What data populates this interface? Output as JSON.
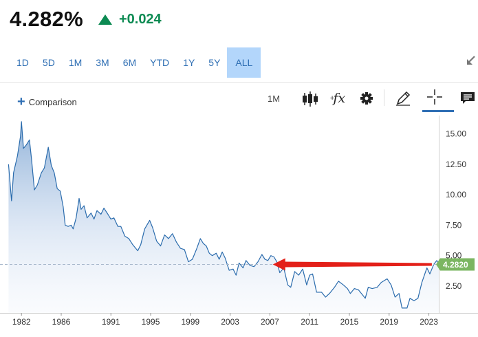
{
  "quote": {
    "price": "4.282%",
    "direction": "up",
    "change": "+0.024"
  },
  "ranges": [
    {
      "label": "1D",
      "active": false
    },
    {
      "label": "5D",
      "active": false
    },
    {
      "label": "1M",
      "active": false
    },
    {
      "label": "3M",
      "active": false
    },
    {
      "label": "6M",
      "active": false
    },
    {
      "label": "YTD",
      "active": false
    },
    {
      "label": "1Y",
      "active": false
    },
    {
      "label": "5Y",
      "active": false
    },
    {
      "label": "ALL",
      "active": true
    }
  ],
  "toolbar": {
    "comparison_label": "Comparison",
    "interval_label": "1M",
    "fx_label": "fx",
    "fx_sup": "+",
    "icons": [
      "candlestick-icon",
      "function-icon",
      "gear-icon",
      "pencil-icon",
      "crosshair-icon",
      "comment-icon",
      "collapse-arrow-icon"
    ]
  },
  "colors": {
    "accent": "#2f6fb4",
    "active_range_bg": "#b3d6fb",
    "up": "#0c8a52",
    "line": "#2b6cad",
    "price_tag": "#7bb661",
    "annotation_arrow": "#e32019"
  },
  "chart_data": {
    "type": "area",
    "x_tick_labels": [
      "1982",
      "1986",
      "1991",
      "1995",
      "1999",
      "2003",
      "2007",
      "2011",
      "2015",
      "2019",
      "2023"
    ],
    "y_tick_labels": [
      "2.50",
      "5.00",
      "7.50",
      "10.00",
      "12.50",
      "15.00"
    ],
    "y_ticks": [
      2.5,
      5,
      7.5,
      10,
      12.5,
      15
    ],
    "xlim": [
      1980.6,
      2024.0
    ],
    "ylim": [
      0.3,
      16.5
    ],
    "last_price_label": "4.2820",
    "last_price": 4.282,
    "grid": false,
    "annotation": "red arrow pointing left from the last-price level toward the 2007 peak",
    "annotation_arrow": {
      "from": [
        2023.3,
        4.282
      ],
      "to": [
        2007.3,
        4.282
      ]
    },
    "series": [
      {
        "values": [
          [
            1980.7,
            12.5
          ],
          [
            1981.0,
            9.5
          ],
          [
            1981.2,
            11.8
          ],
          [
            1981.6,
            13.2
          ],
          [
            1981.9,
            14.8
          ],
          [
            1982.0,
            16.0
          ],
          [
            1982.2,
            13.8
          ],
          [
            1982.5,
            14.1
          ],
          [
            1982.8,
            14.5
          ],
          [
            1983.0,
            13.0
          ],
          [
            1983.3,
            10.4
          ],
          [
            1983.6,
            10.8
          ],
          [
            1984.0,
            11.8
          ],
          [
            1984.3,
            12.2
          ],
          [
            1984.7,
            13.9
          ],
          [
            1985.0,
            12.4
          ],
          [
            1985.3,
            11.8
          ],
          [
            1985.6,
            10.5
          ],
          [
            1985.9,
            10.3
          ],
          [
            1986.2,
            9.0
          ],
          [
            1986.4,
            7.5
          ],
          [
            1986.7,
            7.4
          ],
          [
            1987.0,
            7.5
          ],
          [
            1987.2,
            7.2
          ],
          [
            1987.5,
            8.1
          ],
          [
            1987.8,
            9.7
          ],
          [
            1988.0,
            8.8
          ],
          [
            1988.3,
            9.1
          ],
          [
            1988.6,
            8.1
          ],
          [
            1989.0,
            8.5
          ],
          [
            1989.3,
            8.0
          ],
          [
            1989.6,
            8.7
          ],
          [
            1990.0,
            8.4
          ],
          [
            1990.3,
            8.9
          ],
          [
            1990.7,
            8.4
          ],
          [
            1991.0,
            8.0
          ],
          [
            1991.3,
            8.1
          ],
          [
            1991.7,
            7.4
          ],
          [
            1992.0,
            7.4
          ],
          [
            1992.4,
            6.6
          ],
          [
            1992.8,
            6.4
          ],
          [
            1993.2,
            5.9
          ],
          [
            1993.7,
            5.4
          ],
          [
            1994.0,
            5.9
          ],
          [
            1994.4,
            7.2
          ],
          [
            1994.9,
            7.9
          ],
          [
            1995.2,
            7.3
          ],
          [
            1995.6,
            6.2
          ],
          [
            1996.0,
            5.8
          ],
          [
            1996.4,
            6.7
          ],
          [
            1996.8,
            6.4
          ],
          [
            1997.2,
            6.8
          ],
          [
            1997.6,
            6.1
          ],
          [
            1998.0,
            5.6
          ],
          [
            1998.4,
            5.5
          ],
          [
            1998.8,
            4.5
          ],
          [
            1999.2,
            4.7
          ],
          [
            1999.6,
            5.5
          ],
          [
            2000.0,
            6.4
          ],
          [
            2000.3,
            6.0
          ],
          [
            2000.6,
            5.8
          ],
          [
            2000.9,
            5.2
          ],
          [
            2001.2,
            5.0
          ],
          [
            2001.6,
            5.2
          ],
          [
            2001.9,
            4.7
          ],
          [
            2002.2,
            5.3
          ],
          [
            2002.5,
            4.8
          ],
          [
            2002.9,
            3.8
          ],
          [
            2003.3,
            3.9
          ],
          [
            2003.6,
            3.4
          ],
          [
            2003.9,
            4.4
          ],
          [
            2004.3,
            4.0
          ],
          [
            2004.6,
            4.6
          ],
          [
            2005.0,
            4.2
          ],
          [
            2005.4,
            4.1
          ],
          [
            2005.8,
            4.5
          ],
          [
            2006.2,
            5.1
          ],
          [
            2006.5,
            4.7
          ],
          [
            2006.8,
            4.6
          ],
          [
            2007.1,
            5.0
          ],
          [
            2007.4,
            4.9
          ],
          [
            2007.7,
            4.5
          ],
          [
            2008.0,
            3.6
          ],
          [
            2008.4,
            4.0
          ],
          [
            2008.8,
            2.6
          ],
          [
            2009.1,
            2.4
          ],
          [
            2009.5,
            3.7
          ],
          [
            2009.9,
            3.4
          ],
          [
            2010.3,
            3.9
          ],
          [
            2010.7,
            2.6
          ],
          [
            2011.0,
            3.4
          ],
          [
            2011.3,
            3.5
          ],
          [
            2011.7,
            2.0
          ],
          [
            2012.2,
            2.0
          ],
          [
            2012.6,
            1.6
          ],
          [
            2013.0,
            1.9
          ],
          [
            2013.5,
            2.4
          ],
          [
            2013.9,
            2.9
          ],
          [
            2014.4,
            2.6
          ],
          [
            2014.8,
            2.3
          ],
          [
            2015.1,
            1.9
          ],
          [
            2015.5,
            2.3
          ],
          [
            2015.9,
            2.2
          ],
          [
            2016.3,
            1.8
          ],
          [
            2016.6,
            1.5
          ],
          [
            2016.9,
            2.4
          ],
          [
            2017.3,
            2.3
          ],
          [
            2017.8,
            2.4
          ],
          [
            2018.2,
            2.8
          ],
          [
            2018.8,
            3.1
          ],
          [
            2019.2,
            2.6
          ],
          [
            2019.6,
            1.6
          ],
          [
            2020.0,
            1.9
          ],
          [
            2020.3,
            0.7
          ],
          [
            2020.8,
            0.7
          ],
          [
            2021.1,
            1.5
          ],
          [
            2021.5,
            1.3
          ],
          [
            2021.9,
            1.5
          ],
          [
            2022.3,
            2.8
          ],
          [
            2022.8,
            4.0
          ],
          [
            2023.1,
            3.5
          ],
          [
            2023.5,
            4.3
          ],
          [
            2023.8,
            4.6
          ],
          [
            2024.0,
            4.282
          ]
        ]
      }
    ]
  }
}
